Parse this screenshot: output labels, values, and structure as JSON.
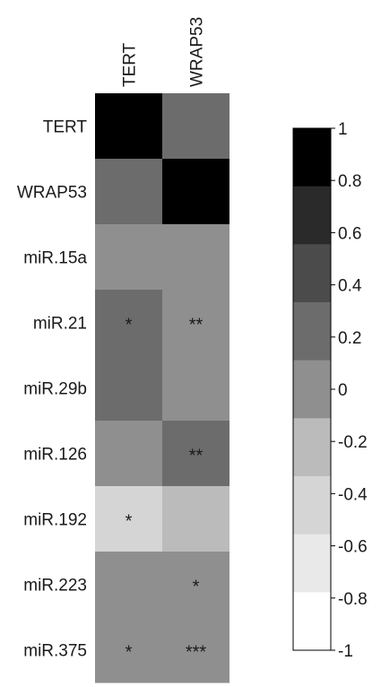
{
  "chart_data": {
    "type": "heatmap",
    "title": "",
    "columns": [
      "TERT",
      "WRAP53"
    ],
    "rows": [
      "TERT",
      "WRAP53",
      "miR.15a",
      "miR.21",
      "miR.29b",
      "miR.126",
      "miR.192",
      "miR.223",
      "miR.375"
    ],
    "values": [
      [
        1.0,
        0.2
      ],
      [
        0.2,
        1.0
      ],
      [
        0.1,
        0.1
      ],
      [
        0.2,
        0.1
      ],
      [
        0.2,
        0.1
      ],
      [
        0.1,
        0.2
      ],
      [
        -0.5,
        -0.2
      ],
      [
        0.1,
        0.1
      ],
      [
        -0.1,
        -0.1
      ]
    ],
    "significance": [
      [
        "",
        ""
      ],
      [
        "",
        ""
      ],
      [
        "",
        ""
      ],
      [
        "*",
        "**"
      ],
      [
        "",
        ""
      ],
      [
        "",
        "**"
      ],
      [
        "*",
        ""
      ],
      [
        "",
        "*"
      ],
      [
        "*",
        "***"
      ]
    ],
    "colorbar": {
      "range": [
        -1,
        1
      ],
      "ticks": [
        "1",
        "0.8",
        "0.6",
        "0.4",
        "0.2",
        "0",
        "-0.2",
        "-0.4",
        "-0.6",
        "-0.8",
        "-1"
      ],
      "colors": [
        "#000000",
        "#2a2a2a",
        "#4b4b4b",
        "#6c6c6c",
        "#8f8f8f",
        "#bbbbbb",
        "#d5d5d5",
        "#e9e9e9",
        "#ffffff"
      ]
    }
  }
}
